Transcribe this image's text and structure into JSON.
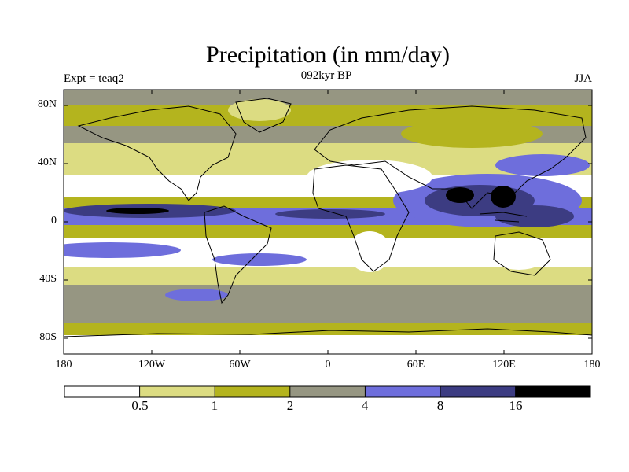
{
  "title": "Precipitation (in mm/day)",
  "experiment": "Expt = teaq2",
  "period": "092kyr BP",
  "season": "JJA",
  "colors": {
    "c0": "#ffffff",
    "c1": "#dcdc82",
    "c2": "#b4b41e",
    "c3": "#969682",
    "c4": "#6e6edc",
    "c5": "#3c3c82",
    "c6": "#000000",
    "land": "#000000"
  },
  "axes": {
    "lat_labels": [
      "80N",
      "40N",
      "0",
      "40S",
      "80S"
    ],
    "lon_labels": [
      "180",
      "120W",
      "60W",
      "0",
      "60E",
      "120E",
      "180"
    ]
  },
  "colorbar": {
    "thresholds": [
      "0.5",
      "1",
      "2",
      "4",
      "8",
      "16"
    ]
  }
}
